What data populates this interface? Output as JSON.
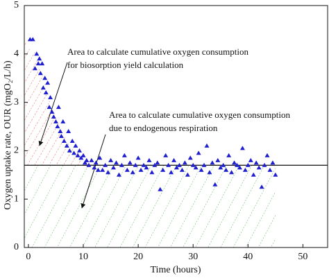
{
  "chart_data": {
    "type": "scatter",
    "x_label": "Time (hours)",
    "y_label": "Oxygen uptake rate, OUR (mgO₂/L/h)",
    "xlim": [
      -0.75,
      54.5
    ],
    "ylim": [
      0,
      5
    ],
    "xticks": [
      0,
      10,
      20,
      30,
      40,
      50
    ],
    "yticks": [
      0,
      1,
      2,
      3,
      4,
      5
    ],
    "reference_line": 1.7,
    "annotations": [
      [
        "Area to calculate cumulative oxygen consumption",
        "for biosorption yield calculation"
      ],
      [
        "Area to calculate cumulative oxygen consumption",
        "due to endogenous respiration"
      ]
    ],
    "series": [
      {
        "color": "#1f1fd0",
        "x": [
          0.3,
          0.8,
          1.2,
          1.5,
          1.8,
          2.0,
          2.2,
          2.5,
          2.7,
          3.0,
          3.2,
          3.5,
          3.8,
          4.0,
          4.3,
          4.6,
          5.0,
          5.3,
          5.5,
          5.8,
          6.0,
          6.3,
          6.5,
          7.0,
          7.3,
          7.5,
          8.0,
          8.3,
          8.6,
          9.0,
          9.3,
          9.6,
          10.0,
          10.3,
          10.6,
          11.0,
          11.5,
          12.0,
          12.3,
          12.7,
          13,
          13.5,
          14,
          14.5,
          15,
          15.5,
          16,
          16.5,
          17,
          17.5,
          18,
          18.5,
          19,
          19.5,
          20,
          20.5,
          21,
          21.5,
          22,
          22.5,
          23,
          23.5,
          24,
          24.5,
          25,
          25.5,
          26,
          26.5,
          27,
          27.5,
          28,
          28.5,
          29,
          29.5,
          30,
          30.5,
          31,
          31.5,
          32,
          32.5,
          33,
          33.5,
          34,
          34.5,
          35,
          35.5,
          36,
          36.5,
          37,
          37.5,
          38,
          38.5,
          39,
          39.5,
          40,
          40.5,
          41,
          41.5,
          42,
          42.5,
          43,
          43.5,
          44,
          44.5,
          45
        ],
        "values": [
          4.3,
          4.3,
          3.7,
          4.0,
          3.8,
          3.9,
          3.6,
          3.8,
          3.3,
          3.5,
          3.2,
          3.4,
          2.9,
          3.1,
          2.8,
          2.7,
          2.6,
          2.5,
          2.9,
          2.4,
          2.3,
          2.6,
          2.2,
          2.1,
          2.4,
          2.0,
          2.2,
          1.95,
          2.1,
          1.9,
          2.0,
          1.85,
          1.9,
          1.75,
          1.8,
          1.7,
          1.8,
          1.65,
          1.75,
          1.6,
          1.85,
          1.6,
          1.7,
          1.55,
          1.8,
          1.65,
          1.75,
          1.5,
          1.7,
          1.9,
          1.6,
          1.75,
          1.55,
          1.7,
          1.85,
          1.6,
          1.7,
          1.65,
          1.8,
          1.55,
          1.7,
          1.75,
          1.2,
          1.6,
          1.9,
          1.7,
          1.55,
          1.8,
          1.65,
          1.7,
          1.6,
          1.75,
          1.5,
          1.85,
          1.7,
          1.65,
          1.95,
          1.6,
          1.7,
          2.1,
          1.55,
          1.75,
          1.3,
          1.8,
          1.65,
          1.7,
          1.6,
          1.9,
          1.55,
          1.75,
          1.7,
          1.65,
          2.05,
          1.6,
          1.7,
          1.8,
          1.5,
          1.75,
          1.65,
          1.25,
          1.7,
          1.9,
          1.6,
          1.75,
          1.5
        ]
      }
    ]
  }
}
